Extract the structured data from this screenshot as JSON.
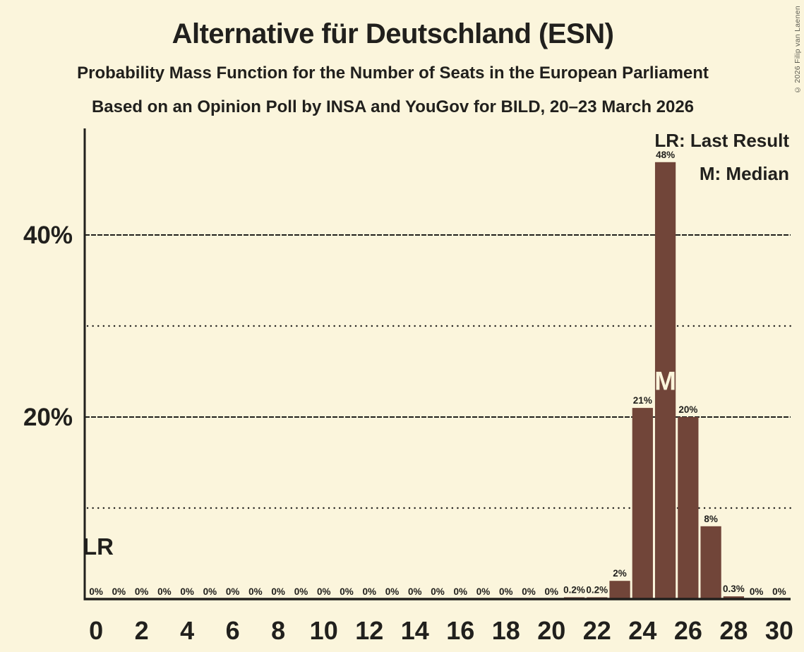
{
  "page": {
    "title": "Alternative für Deutschland (ESN)",
    "subtitle": "Probability Mass Function for the Number of Seats in the European Parliament",
    "poll_details": "Based on an Opinion Poll by INSA and YouGov for BILD, 20–23 March 2026",
    "copyright": "© 2026 Filip van Laenen"
  },
  "legend": {
    "lr": "LR: Last Result",
    "m": "M: Median"
  },
  "colors": {
    "background": "#FBF5DC",
    "bar": "#714539",
    "text": "#21201D",
    "median_label": "#FBF5DC",
    "copyright": "#5E5D52"
  },
  "chart_data": {
    "type": "bar",
    "title": "Alternative für Deutschland (ESN)",
    "x": [
      0,
      1,
      2,
      3,
      4,
      5,
      6,
      7,
      8,
      9,
      10,
      11,
      12,
      13,
      14,
      15,
      16,
      17,
      18,
      19,
      20,
      21,
      22,
      23,
      24,
      25,
      26,
      27,
      28,
      29,
      30
    ],
    "values": [
      0,
      0,
      0,
      0,
      0,
      0,
      0,
      0,
      0,
      0,
      0,
      0,
      0,
      0,
      0,
      0,
      0,
      0,
      0,
      0,
      0,
      0.2,
      0.2,
      2,
      21,
      48,
      20,
      8,
      0.3,
      0,
      0
    ],
    "bar_labels": [
      "0%",
      "0%",
      "0%",
      "0%",
      "0%",
      "0%",
      "0%",
      "0%",
      "0%",
      "0%",
      "0%",
      "0%",
      "0%",
      "0%",
      "0%",
      "0%",
      "0%",
      "0%",
      "0%",
      "0%",
      "0%",
      "0.2%",
      "0.2%",
      "2%",
      "21%",
      "48%",
      "20%",
      "8%",
      "0.3%",
      "0%",
      "0%"
    ],
    "xticks": [
      0,
      2,
      4,
      6,
      8,
      10,
      12,
      14,
      16,
      18,
      20,
      22,
      24,
      26,
      28,
      30
    ],
    "ylim": [
      0,
      52
    ],
    "gridlines": {
      "solid": [
        20,
        40
      ],
      "dotted": [
        10,
        30
      ]
    },
    "ytick_labels": [
      {
        "value": 20,
        "label": "20%"
      },
      {
        "value": 40,
        "label": "40%"
      }
    ],
    "annotations": {
      "last_result": {
        "label": "LR",
        "seat": 0
      },
      "median": {
        "label": "M",
        "seat": 25
      }
    },
    "legend_position": "top-right",
    "grid": "horizontal-only"
  }
}
